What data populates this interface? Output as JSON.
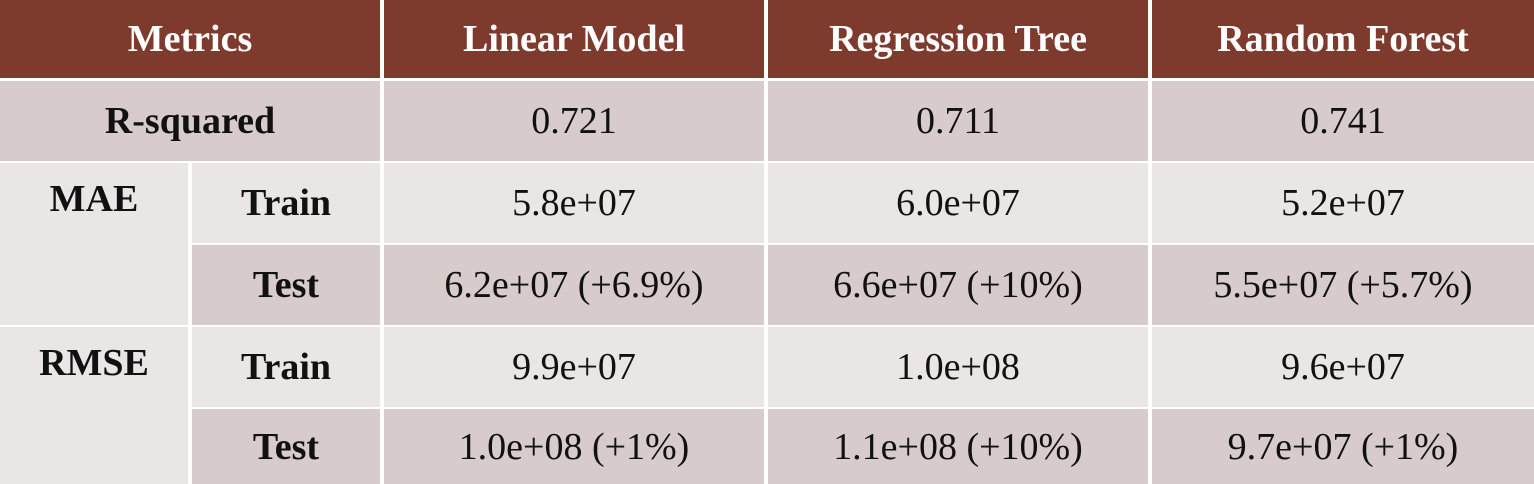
{
  "table": {
    "header": [
      "Metrics",
      "Linear Model",
      "Regression Tree",
      "Random Forest"
    ],
    "rows": [
      {
        "label": "R-squared",
        "values": [
          "0.721",
          "0.711",
          "0.741"
        ]
      }
    ],
    "groups": [
      {
        "label": "MAE",
        "rows": [
          {
            "label": "Train",
            "values": [
              "5.8e+07",
              "6.0e+07",
              "5.2e+07"
            ]
          },
          {
            "label": "Test",
            "values": [
              "6.2e+07 (+6.9%)",
              "6.6e+07 (+10%)",
              "5.5e+07 (+5.7%)"
            ]
          }
        ]
      },
      {
        "label": "RMSE",
        "rows": [
          {
            "label": "Train",
            "values": [
              "9.9e+07",
              "1.0e+08",
              "9.6e+07"
            ]
          },
          {
            "label": "Test",
            "values": [
              "1.0e+08 (+1%)",
              "1.1e+08 (+10%)",
              "9.7e+07 (+1%)"
            ]
          }
        ]
      }
    ]
  }
}
